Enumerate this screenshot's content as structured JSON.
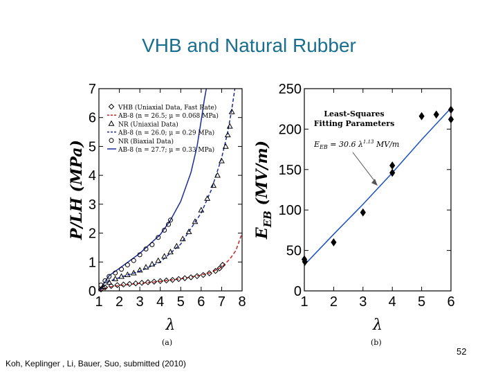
{
  "slide": {
    "title": "VHB and Natural Rubber",
    "page_number": "52",
    "citation": "Koh, Keplinger , Li, Bauer, Suo, submitted (2010)"
  },
  "chart_data": [
    {
      "type": "scatter",
      "panel_label": "(a)",
      "ylabel": "P/LH (MPa)",
      "xlabel": "λ",
      "xlim": [
        1,
        8
      ],
      "ylim": [
        0,
        7
      ],
      "xticks": [
        "1",
        "2",
        "3",
        "4",
        "5",
        "6",
        "7",
        "8"
      ],
      "yticks": [
        "0",
        "1",
        "2",
        "3",
        "4",
        "5",
        "6",
        "7"
      ],
      "legend_position": "top-left",
      "series": [
        {
          "name": "VHB (Uniaxial Data, Fast Rate)",
          "kind": "points",
          "marker": "diamond",
          "color": "#000000",
          "points": [
            [
              1.1,
              0.05
            ],
            [
              1.3,
              0.12
            ],
            [
              1.6,
              0.17
            ],
            [
              1.9,
              0.2
            ],
            [
              2.2,
              0.22
            ],
            [
              2.5,
              0.24
            ],
            [
              2.8,
              0.26
            ],
            [
              3.1,
              0.28
            ],
            [
              3.4,
              0.3
            ],
            [
              3.7,
              0.32
            ],
            [
              4.0,
              0.34
            ],
            [
              4.3,
              0.36
            ],
            [
              4.6,
              0.38
            ],
            [
              4.9,
              0.41
            ],
            [
              5.2,
              0.44
            ],
            [
              5.5,
              0.47
            ],
            [
              5.8,
              0.51
            ],
            [
              6.1,
              0.55
            ],
            [
              6.4,
              0.61
            ],
            [
              6.7,
              0.69
            ],
            [
              6.9,
              0.78
            ],
            [
              7.05,
              0.9
            ]
          ]
        },
        {
          "name": "AB-8 (n = 26.5; μ = 0.068 MPa)",
          "kind": "curve",
          "style": "dashed",
          "color": "#cc2222",
          "points": [
            [
              1.0,
              0.0
            ],
            [
              1.5,
              0.14
            ],
            [
              2.0,
              0.19
            ],
            [
              3.0,
              0.26
            ],
            [
              4.0,
              0.33
            ],
            [
              5.0,
              0.42
            ],
            [
              6.0,
              0.55
            ],
            [
              6.5,
              0.64
            ],
            [
              7.0,
              0.82
            ],
            [
              7.4,
              1.1
            ],
            [
              7.7,
              1.4
            ],
            [
              8.0,
              2.0
            ]
          ]
        },
        {
          "name": "NR (Uniaxial Data)",
          "kind": "points",
          "marker": "triangle",
          "color": "#000000",
          "points": [
            [
              1.2,
              0.15
            ],
            [
              1.5,
              0.3
            ],
            [
              1.8,
              0.42
            ],
            [
              2.1,
              0.5
            ],
            [
              2.4,
              0.56
            ],
            [
              2.7,
              0.62
            ],
            [
              3.0,
              0.72
            ],
            [
              3.3,
              0.82
            ],
            [
              3.6,
              0.93
            ],
            [
              3.9,
              1.05
            ],
            [
              4.2,
              1.2
            ],
            [
              4.5,
              1.35
            ],
            [
              4.8,
              1.55
            ],
            [
              5.1,
              1.8
            ],
            [
              5.4,
              2.05
            ],
            [
              5.7,
              2.4
            ],
            [
              6.0,
              2.8
            ],
            [
              6.3,
              3.2
            ],
            [
              6.6,
              3.65
            ],
            [
              6.8,
              4.0
            ],
            [
              7.0,
              4.5
            ],
            [
              7.2,
              5.0
            ],
            [
              7.3,
              5.4
            ],
            [
              7.4,
              5.7
            ],
            [
              7.5,
              6.2
            ]
          ]
        },
        {
          "name": "AB-8 (n = 26.0; μ = 0.29 MPa)",
          "kind": "curve",
          "style": "dashed",
          "color": "#1a2a9a",
          "points": [
            [
              1.0,
              0.0
            ],
            [
              1.5,
              0.33
            ],
            [
              2.0,
              0.46
            ],
            [
              3.0,
              0.68
            ],
            [
              4.0,
              1.0
            ],
            [
              5.0,
              1.62
            ],
            [
              6.0,
              2.7
            ],
            [
              6.5,
              3.5
            ],
            [
              7.0,
              4.6
            ],
            [
              7.3,
              5.5
            ],
            [
              7.5,
              6.3
            ],
            [
              7.65,
              7.0
            ]
          ]
        },
        {
          "name": "NR (Biaxial Data)",
          "kind": "points",
          "marker": "circle",
          "color": "#000000",
          "points": [
            [
              1.1,
              0.2
            ],
            [
              1.3,
              0.35
            ],
            [
              1.5,
              0.5
            ],
            [
              1.8,
              0.62
            ],
            [
              2.1,
              0.75
            ],
            [
              2.4,
              0.9
            ],
            [
              2.7,
              1.05
            ],
            [
              3.0,
              1.25
            ],
            [
              3.3,
              1.45
            ],
            [
              3.6,
              1.6
            ],
            [
              3.9,
              1.85
            ],
            [
              4.2,
              2.1
            ],
            [
              4.4,
              2.3
            ],
            [
              4.5,
              2.45
            ]
          ]
        },
        {
          "name": "AB-8 (n = 27.7; μ = 0.33 MPa)",
          "kind": "curve",
          "style": "solid",
          "color": "#1a2a9a",
          "points": [
            [
              1.0,
              0.0
            ],
            [
              1.5,
              0.53
            ],
            [
              2.0,
              0.78
            ],
            [
              3.0,
              1.3
            ],
            [
              4.0,
              1.95
            ],
            [
              4.5,
              2.45
            ],
            [
              5.0,
              3.1
            ],
            [
              5.5,
              4.1
            ],
            [
              5.8,
              5.0
            ],
            [
              6.0,
              5.9
            ],
            [
              6.15,
              6.6
            ],
            [
              6.25,
              7.0
            ]
          ]
        }
      ]
    },
    {
      "type": "scatter",
      "panel_label": "(b)",
      "ylabel": "E_EB (MV/m)",
      "xlabel": "λ",
      "xlim": [
        1,
        6
      ],
      "ylim": [
        0,
        250
      ],
      "xticks": [
        "1",
        "2",
        "3",
        "4",
        "5",
        "6"
      ],
      "yticks": [
        "0",
        "50",
        "100",
        "150",
        "200",
        "250"
      ],
      "annotation_title": "Least-Squares Fitting Parameters",
      "annotation_formula": "E_EB = 30.6 λ^1.13 MV/m",
      "series": [
        {
          "name": "",
          "kind": "points",
          "marker": "diamond-filled",
          "color": "#000000",
          "points": [
            [
              1.0,
              39
            ],
            [
              1.02,
              36
            ],
            [
              2.0,
              60
            ],
            [
              3.0,
              97
            ],
            [
              4.0,
              155
            ],
            [
              4.0,
              146
            ],
            [
              5.0,
              216
            ],
            [
              5.5,
              218
            ],
            [
              6.0,
              224
            ],
            [
              6.0,
              212
            ]
          ]
        },
        {
          "name": "",
          "kind": "curve",
          "style": "solid",
          "color": "#1a4fbf",
          "points": [
            [
              1.0,
              32
            ],
            [
              2.0,
              70
            ],
            [
              3.0,
              107
            ],
            [
              4.0,
              146
            ],
            [
              5.0,
              187
            ],
            [
              6.0,
              226
            ]
          ]
        }
      ]
    }
  ]
}
